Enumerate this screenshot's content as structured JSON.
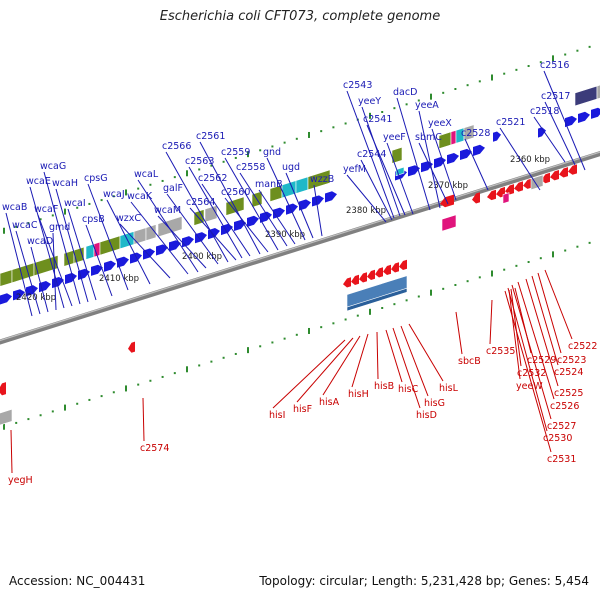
{
  "title": "Escherichia coli CFT073, complete genome",
  "footer": {
    "accession": "Accession: NC_004431",
    "summary": "Topology: circular; Length: 5,231,428 bp; Genes: 5,454"
  },
  "colors": {
    "forward_gene": "#1a1adc",
    "reverse_gene": "#e8141c",
    "backbone": "#808080",
    "tick": "#2e8b2e",
    "forward_label": "#1a1ab4",
    "reverse_label": "#c80000",
    "cog_olive": "#6e8f1e",
    "cog_cyan": "#1fb8c8",
    "cog_gray": "#a8a8a8",
    "cog_magenta": "#e0147c",
    "cog_steelblue": "#4a7fb8",
    "cog_navy": "#3c3c7a"
  },
  "scale_labels": [
    "2360 kbp",
    "2370 kbp",
    "2380 kbp",
    "2390 kbp",
    "2400 kbp",
    "2410 kbp",
    "2420 kbp"
  ],
  "forward_genes": [
    "c2516",
    "c2517",
    "c2518",
    "c2521",
    "c2528",
    "yeeX",
    "sbmC",
    "yeeA",
    "dacD",
    "yeeF",
    "c2541",
    "yeeY",
    "c2543",
    "c2544",
    "yefM",
    "wzzB",
    "ugd",
    "gnd",
    "manB",
    "c2558",
    "c2559",
    "c2560",
    "c2561",
    "c2562",
    "c2563",
    "c2564",
    "c2566",
    "galF",
    "wcaM",
    "wcaL",
    "wcaK",
    "wzxC",
    "wcaJ",
    "cpsG",
    "cpsB",
    "wcaI",
    "wcaH",
    "wcaG",
    "wcaF",
    "wcaE",
    "gmd",
    "wcaD",
    "wcaC",
    "wcaB"
  ],
  "reverse_genes": [
    "c2522",
    "c2523",
    "c2524",
    "c2525",
    "c2526",
    "c2527",
    "c2530",
    "c2531",
    "c2529",
    "c2532",
    "yeeW",
    "c2535",
    "sbcB",
    "hisL",
    "hisG",
    "hisD",
    "hisC",
    "hisB",
    "hisH",
    "hisA",
    "hisF",
    "hisI",
    "c2574",
    "yegH"
  ]
}
